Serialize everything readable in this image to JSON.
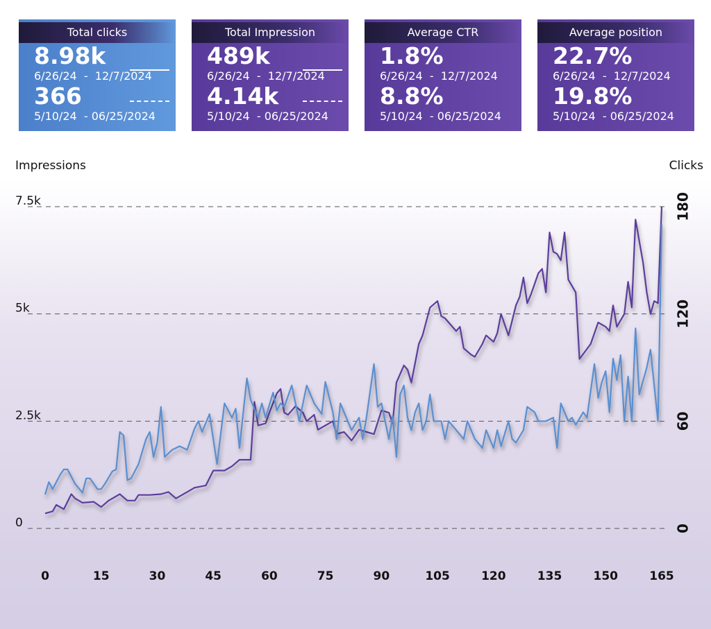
{
  "cards": [
    {
      "title": "Total clicks",
      "value": "8.98k",
      "range": "6/26/24  -  12/7/2024",
      "previous_value": "366",
      "previous_range": "5/10/24  - 06/25/2024"
    },
    {
      "title": "Total Impression",
      "value": "489k",
      "range": "6/26/24  -  12/7/2024",
      "previous_value": "4.14k",
      "previous_range": "5/10/24  - 06/25/2024"
    },
    {
      "title": "Average CTR",
      "value": "1.8%",
      "range": "6/26/24  -  12/7/2024",
      "previous_value": "8.8%",
      "previous_range": "5/10/24  - 06/25/2024"
    },
    {
      "title": "Average position",
      "value": "22.7%",
      "range": "6/26/24  -  12/7/2024",
      "previous_value": "19.8%",
      "previous_range": "5/10/24  - 06/25/2024"
    }
  ],
  "chart_data": {
    "type": "line",
    "ylabel": "Impressions",
    "y2label": "Clicks",
    "xlim": [
      0,
      165
    ],
    "xticks": [
      0,
      15,
      30,
      45,
      60,
      75,
      90,
      105,
      120,
      135,
      150,
      165
    ],
    "ylim": [
      0,
      7500
    ],
    "yticks": [
      0,
      {
        "value": 2500,
        "label": "2.5k"
      },
      {
        "value": 5000,
        "label": "5k"
      },
      {
        "value": 7500,
        "label": "7.5k"
      }
    ],
    "y2lim": [
      0,
      180
    ],
    "y2ticks": [
      0,
      60,
      120,
      180
    ],
    "grid": true,
    "series": [
      {
        "name": "Impressions",
        "color": "#5b3c9c",
        "x": [
          0,
          2,
          3,
          5,
          7,
          8,
          10,
          13,
          15,
          17,
          18,
          20,
          22,
          24,
          25,
          28,
          31,
          33,
          35,
          38,
          40,
          43,
          45,
          48,
          50,
          52,
          55,
          56,
          57,
          59,
          60,
          62,
          63,
          64,
          65,
          67,
          69,
          70,
          72,
          73,
          75,
          77,
          78,
          80,
          82,
          84,
          86,
          88,
          90,
          92,
          93,
          94,
          95,
          96,
          97,
          98,
          100,
          101,
          103,
          105,
          106,
          107,
          108,
          110,
          111,
          112,
          114,
          115,
          117,
          118,
          120,
          121,
          122,
          124,
          126,
          127,
          128,
          129,
          130,
          132,
          133,
          134,
          135,
          136,
          137,
          138,
          139,
          140,
          142,
          143,
          146,
          148,
          150,
          151,
          152,
          153,
          155,
          156,
          157,
          158,
          160,
          161,
          162,
          163,
          164,
          165
        ],
        "values": [
          350,
          400,
          550,
          450,
          800,
          700,
          600,
          620,
          500,
          650,
          700,
          800,
          650,
          650,
          780,
          780,
          800,
          850,
          700,
          850,
          950,
          1000,
          1350,
          1350,
          1450,
          1600,
          1600,
          2950,
          2400,
          2450,
          2700,
          3150,
          3250,
          2700,
          2650,
          2850,
          2700,
          2500,
          2650,
          2300,
          2400,
          2500,
          2200,
          2250,
          2050,
          2300,
          2250,
          2200,
          2750,
          2700,
          2450,
          3400,
          3600,
          3800,
          3700,
          3400,
          4300,
          4500,
          5150,
          5300,
          4950,
          4900,
          4800,
          4600,
          4700,
          4200,
          4050,
          4000,
          4300,
          4500,
          4350,
          4550,
          5000,
          4500,
          5200,
          5400,
          5850,
          5250,
          5450,
          5950,
          6050,
          5500,
          6900,
          6450,
          6400,
          6250,
          6900,
          5800,
          5500,
          3950,
          4300,
          4800,
          4700,
          4600,
          5200,
          4700,
          5000,
          5750,
          5150,
          7200,
          6200,
          5500,
          5000,
          5300,
          5250,
          7500
        ]
      },
      {
        "name": "Clicks",
        "color": "#5a8fd0",
        "axis": "y2",
        "x": [
          0,
          1,
          2,
          4,
          5,
          6,
          8,
          10,
          11,
          12,
          14,
          15,
          16,
          18,
          19,
          20,
          21,
          22,
          23,
          25,
          27,
          28,
          29,
          30,
          31,
          32,
          34,
          36,
          38,
          40,
          41,
          42,
          44,
          45,
          46,
          48,
          50,
          51,
          52,
          54,
          55,
          57,
          58,
          59,
          61,
          62,
          63,
          64,
          66,
          68,
          70,
          72,
          74,
          75,
          77,
          78,
          79,
          80,
          82,
          84,
          85,
          86,
          88,
          89,
          90,
          91,
          92,
          93,
          94,
          95,
          96,
          97,
          98,
          99,
          100,
          101,
          102,
          103,
          104,
          106,
          107,
          108,
          110,
          112,
          113,
          115,
          117,
          118,
          120,
          121,
          122,
          124,
          125,
          126,
          128,
          129,
          131,
          132,
          134,
          136,
          137,
          138,
          140,
          141,
          142,
          144,
          145,
          147,
          148,
          149,
          150,
          151,
          152,
          153,
          154,
          155,
          156,
          157,
          158,
          159,
          161,
          162,
          164,
          165
        ],
        "values": [
          19,
          26,
          22,
          30,
          33,
          33,
          25,
          20,
          28,
          28,
          22,
          22,
          25,
          32,
          33,
          54,
          52,
          27,
          28,
          36,
          50,
          54,
          40,
          48,
          68,
          40,
          44,
          46,
          44,
          56,
          60,
          54,
          64,
          50,
          36,
          70,
          62,
          67,
          45,
          84,
          72,
          62,
          70,
          62,
          76,
          66,
          70,
          68,
          80,
          60,
          80,
          70,
          64,
          82,
          65,
          50,
          70,
          65,
          55,
          62,
          50,
          62,
          92,
          68,
          70,
          60,
          50,
          63,
          40,
          75,
          80,
          62,
          55,
          65,
          70,
          55,
          60,
          75,
          60,
          60,
          50,
          60,
          55,
          50,
          60,
          50,
          45,
          55,
          45,
          55,
          46,
          60,
          50,
          48,
          55,
          68,
          65,
          60,
          60,
          62,
          45,
          70,
          60,
          62,
          58,
          65,
          62,
          92,
          73,
          82,
          88,
          65,
          95,
          83,
          97,
          60,
          85,
          60,
          112,
          75,
          90,
          100,
          60,
          170
        ]
      }
    ]
  }
}
